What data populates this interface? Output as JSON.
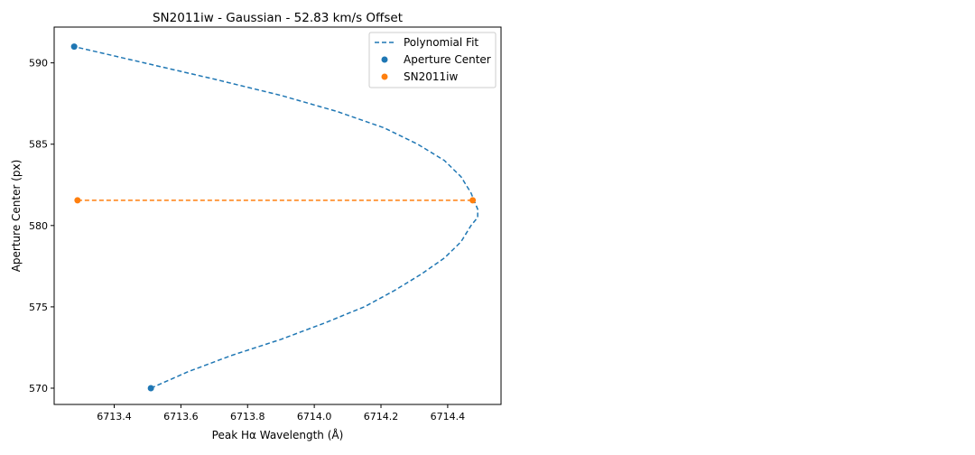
{
  "chart_data": {
    "type": "scatter",
    "title": "SN2011iw - Gaussian - 52.83 km/s Offset",
    "xlabel": "Peak Hα Wavelength (Å)",
    "ylabel": "Aperture Center (px)",
    "xlim": [
      6713.22,
      6714.56
    ],
    "ylim": [
      569.0,
      592.2
    ],
    "xticks": [
      6713.4,
      6713.6,
      6713.8,
      6714.0,
      6714.2,
      6714.4
    ],
    "xtick_labels": [
      "6713.4",
      "6713.6",
      "6713.8",
      "6714.0",
      "6714.2",
      "6714.4"
    ],
    "yticks": [
      570,
      575,
      580,
      585,
      590
    ],
    "ytick_labels": [
      "570",
      "575",
      "580",
      "585",
      "590"
    ],
    "grid": false,
    "legend_position": "top-right",
    "series": [
      {
        "name": "Polynomial Fit",
        "kind": "dashed-line",
        "color": "#1f77b4",
        "x": [
          6713.51,
          6713.62,
          6713.75,
          6713.9,
          6714.03,
          6714.15,
          6714.24,
          6714.32,
          6714.39,
          6714.44,
          6714.47,
          6714.49,
          6714.49,
          6714.47,
          6714.44,
          6714.39,
          6714.31,
          6714.21,
          6714.07,
          6713.9,
          6713.7,
          6713.49,
          6713.28
        ],
        "y": [
          570,
          571,
          572,
          573,
          574,
          575,
          576,
          577,
          578,
          579,
          580,
          580.5,
          581,
          582,
          583,
          584,
          585,
          586,
          587,
          588,
          589,
          590,
          591
        ]
      },
      {
        "name": "Aperture Center",
        "kind": "points",
        "color": "#1f77b4",
        "x": [
          6713.28,
          6713.51
        ],
        "y": [
          591.0,
          570.0
        ]
      },
      {
        "name": "SN2011iw",
        "kind": "points",
        "color": "#ff7f0e",
        "x": [
          6713.29,
          6714.475
        ],
        "y": [
          581.55,
          581.55
        ]
      }
    ],
    "annotations": [
      {
        "kind": "dashed-line",
        "color": "#ff7f0e",
        "x": [
          6713.29,
          6714.475
        ],
        "y": [
          581.55,
          581.55
        ]
      }
    ]
  }
}
